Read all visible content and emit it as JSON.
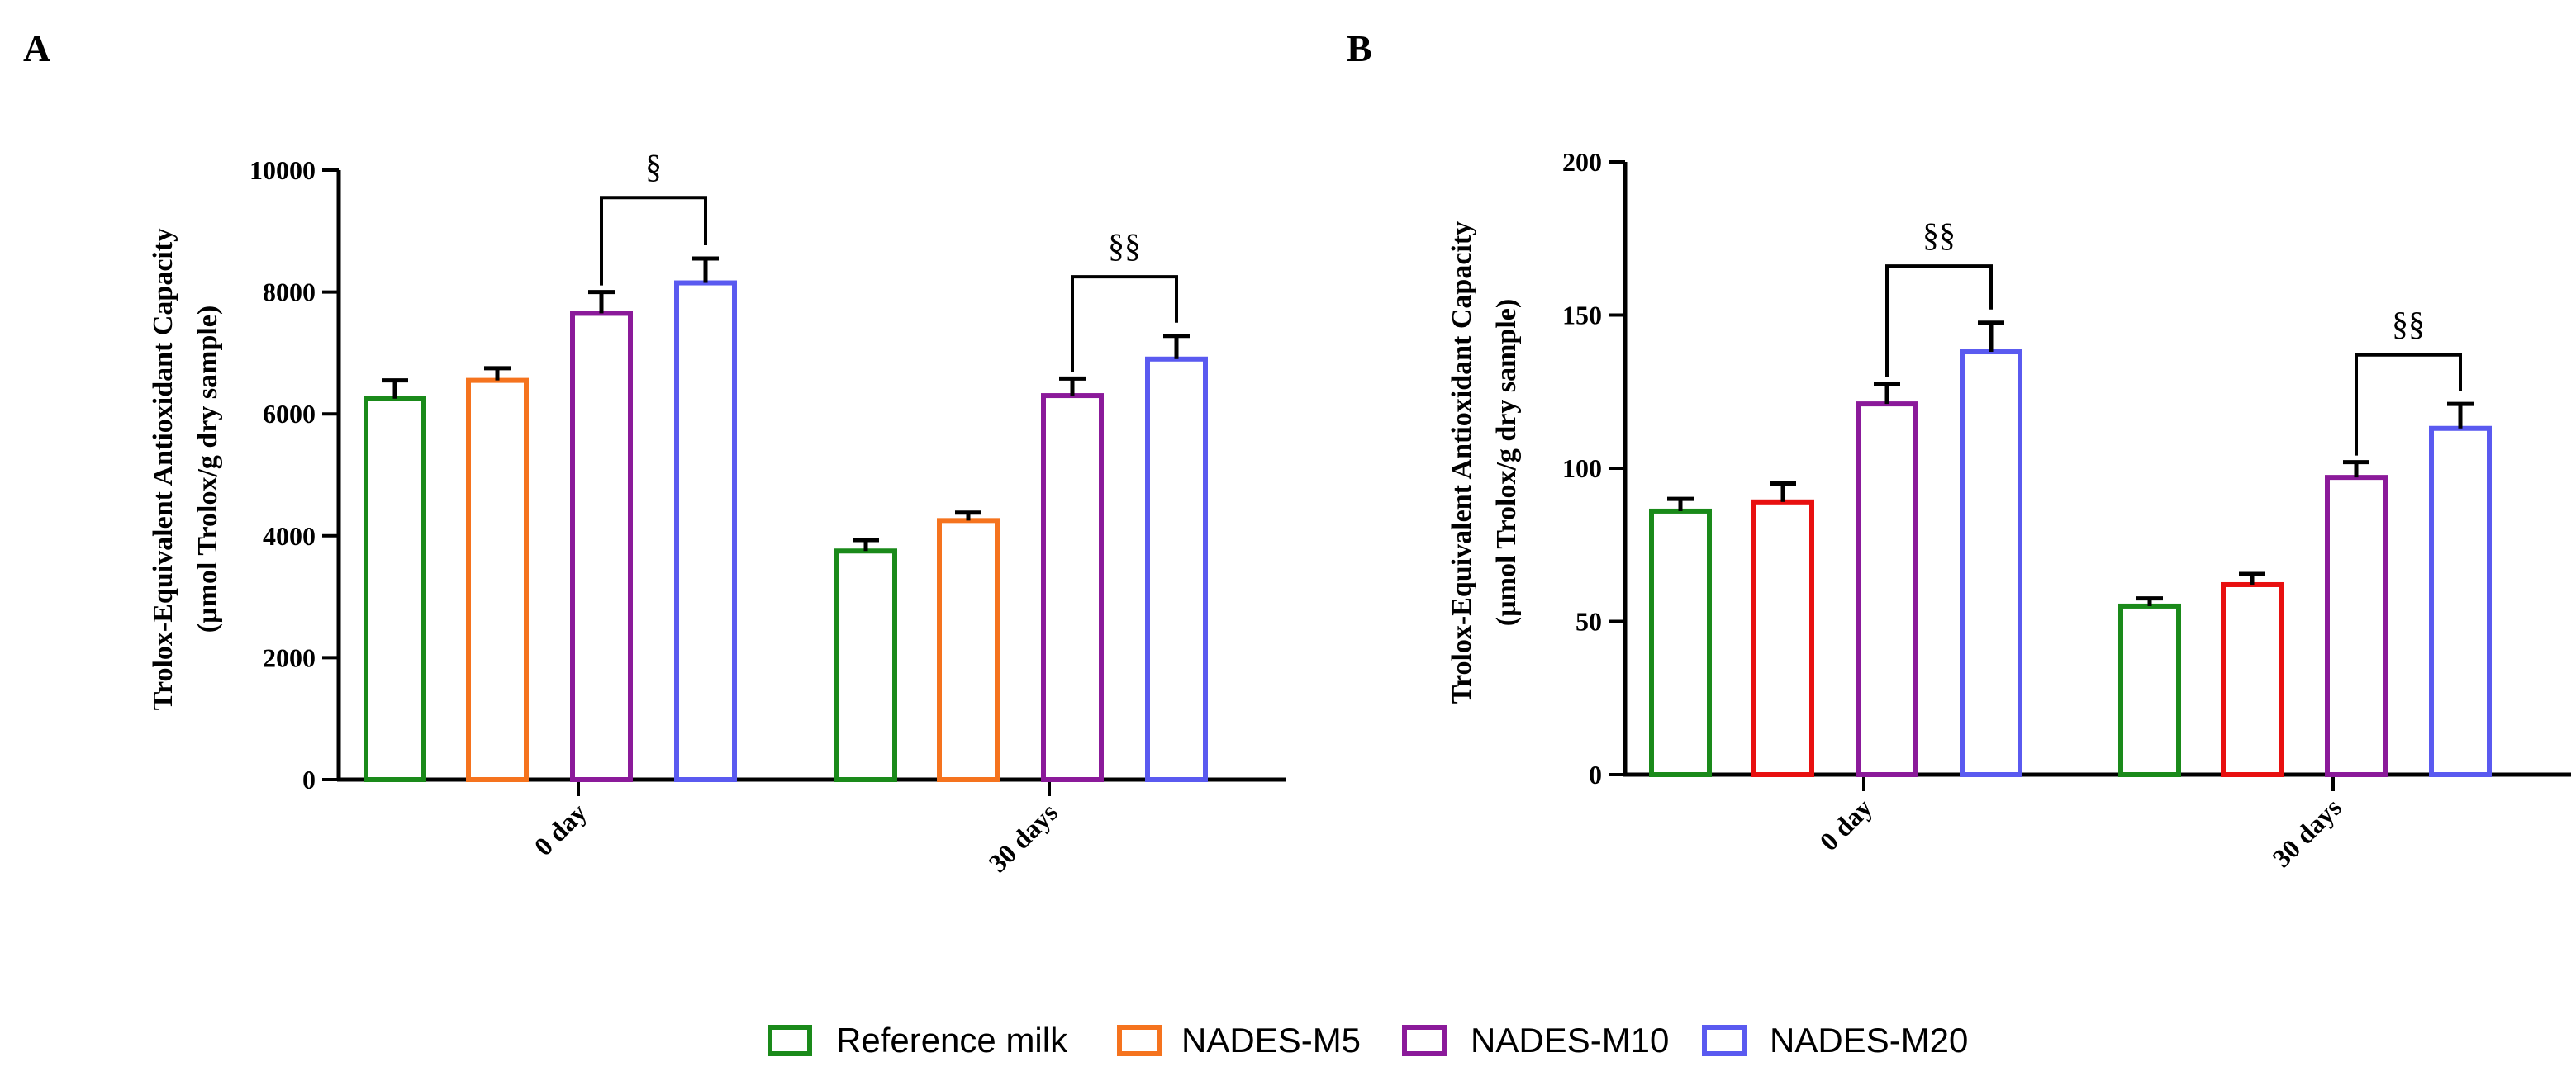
{
  "panels": [
    {
      "letter": "A",
      "ylabel_line1": "Trolox-Equivalent Antioxidant Capacity",
      "ylabel_line2": "(µmol Trolox/g dry sample)",
      "yticks": [
        0,
        2000,
        4000,
        6000,
        8000,
        10000
      ]
    },
    {
      "letter": "B",
      "ylabel_line1": "Trolox-Equivalent Antioxidant Capacity",
      "ylabel_line2": "(µmol Trolox/g dry sample)",
      "yticks": [
        0,
        50,
        100,
        150,
        200
      ]
    }
  ],
  "legend": [
    {
      "label": "Reference milk",
      "color": "#1a8a1a"
    },
    {
      "label": "NADES-M5",
      "color": "#f5731e"
    },
    {
      "label": "NADES-M10",
      "color": "#8b1a9a"
    },
    {
      "label": "NADES-M20",
      "color": "#5a5af0"
    }
  ],
  "chart_data": [
    {
      "type": "bar",
      "panel": "A",
      "title": "",
      "xlabel": "",
      "ylabel": "Trolox-Equivalent Antioxidant Capacity (µmol Trolox/g dry sample)",
      "categories": [
        "0 day",
        "30 days"
      ],
      "ylim": [
        0,
        10000
      ],
      "series": [
        {
          "name": "Reference milk",
          "color": "#1a8a1a",
          "values": [
            6250,
            3750
          ],
          "errors": [
            300,
            180
          ]
        },
        {
          "name": "NADES-M5",
          "color": "#f5731e",
          "values": [
            6550,
            4250
          ],
          "errors": [
            200,
            130
          ]
        },
        {
          "name": "NADES-M10",
          "color": "#8b1a9a",
          "values": [
            7650,
            6300
          ],
          "errors": [
            350,
            280
          ]
        },
        {
          "name": "NADES-M20",
          "color": "#5a5af0",
          "values": [
            8150,
            6900
          ],
          "errors": [
            400,
            380
          ]
        }
      ],
      "annotations": [
        {
          "label": "§",
          "category": 0,
          "from_series": 2,
          "to_series": 3,
          "level": 9550
        },
        {
          "label": "§§",
          "category": 1,
          "from_series": 2,
          "to_series": 3,
          "level": 8250
        }
      ]
    },
    {
      "type": "bar",
      "panel": "B",
      "title": "",
      "xlabel": "",
      "ylabel": "Trolox-Equivalent Antioxidant Capacity (µmol Trolox/g dry sample)",
      "categories": [
        "0 day",
        "30 days"
      ],
      "ylim": [
        0,
        200
      ],
      "series": [
        {
          "name": "Reference milk",
          "color": "#1a8a1a",
          "values": [
            86,
            55
          ],
          "errors": [
            4,
            2.5
          ]
        },
        {
          "name": "NADES-M5",
          "color": "#e81010",
          "values": [
            89,
            62
          ],
          "errors": [
            6,
            3.5
          ]
        },
        {
          "name": "NADES-M10",
          "color": "#8b1a9a",
          "values": [
            121,
            97
          ],
          "errors": [
            6.5,
            5
          ]
        },
        {
          "name": "NADES-M20",
          "color": "#5a5af0",
          "values": [
            138,
            113
          ],
          "errors": [
            9.5,
            8
          ]
        }
      ],
      "annotations": [
        {
          "label": "§§",
          "category": 0,
          "from_series": 2,
          "to_series": 3,
          "level": 166
        },
        {
          "label": "§§",
          "category": 1,
          "from_series": 2,
          "to_series": 3,
          "level": 137
        }
      ]
    }
  ]
}
